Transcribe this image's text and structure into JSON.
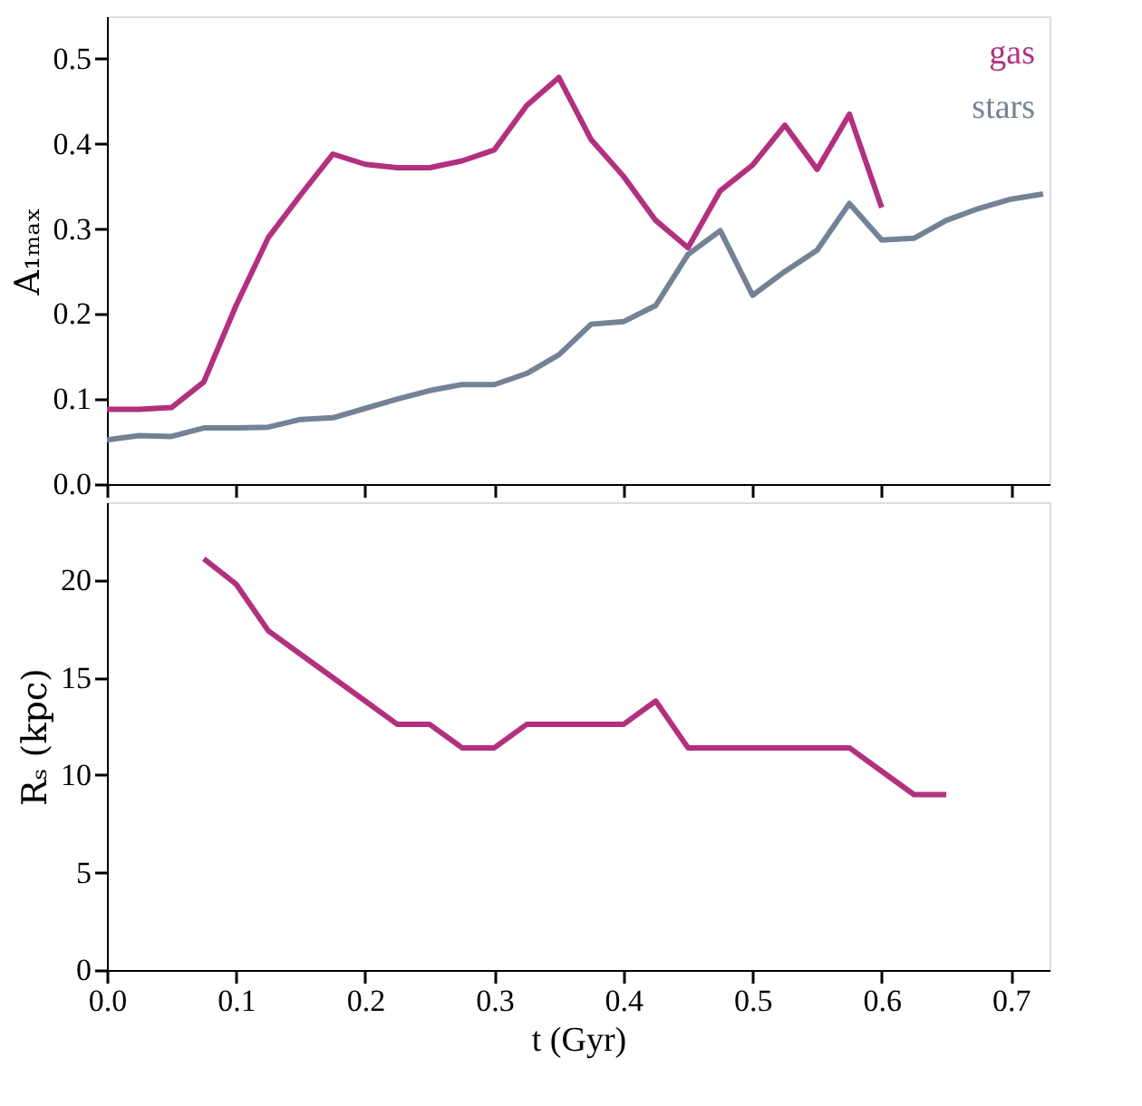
{
  "chart_data": [
    {
      "type": "line",
      "ylabel": "A₁ₘₐₓ",
      "xlim": [
        0,
        0.73
      ],
      "ylim": [
        0,
        0.55
      ],
      "xticks": [
        0,
        0.1,
        0.2,
        0.3,
        0.4,
        0.5,
        0.6,
        0.7
      ],
      "yticks": [
        {
          "value": 0,
          "label": "0.0"
        },
        0.1,
        0.2,
        0.3,
        0.4,
        0.5
      ],
      "tick_labels": "y",
      "legend": "top right",
      "grid": false,
      "line_style": "solid",
      "series": [
        {
          "name": "gas",
          "color": "#b2307f",
          "x": [
            0,
            0.025,
            0.05,
            0.075,
            0.1,
            0.125,
            0.15,
            0.175,
            0.2,
            0.225,
            0.25,
            0.275,
            0.3,
            0.325,
            0.35,
            0.375,
            0.4,
            0.425,
            0.45,
            0.475,
            0.5,
            0.525,
            0.55,
            0.575,
            0.6
          ],
          "values": [
            0.088,
            0.088,
            0.09,
            0.12,
            0.21,
            0.29,
            0.34,
            0.388,
            0.376,
            0.372,
            0.372,
            0.38,
            0.393,
            0.445,
            0.478,
            0.405,
            0.362,
            0.31,
            0.278,
            0.345,
            0.375,
            0.422,
            0.37,
            0.435,
            0.325
          ]
        },
        {
          "name": "stars",
          "color": "#748296",
          "x": [
            0,
            0.025,
            0.05,
            0.075,
            0.1,
            0.125,
            0.15,
            0.175,
            0.2,
            0.225,
            0.25,
            0.275,
            0.3,
            0.325,
            0.35,
            0.375,
            0.4,
            0.425,
            0.45,
            0.475,
            0.5,
            0.525,
            0.55,
            0.575,
            0.6,
            0.625,
            0.65,
            0.675,
            0.7,
            0.725
          ],
          "values": [
            0.052,
            0.057,
            0.056,
            0.066,
            0.066,
            0.067,
            0.076,
            0.078,
            0.089,
            0.1,
            0.11,
            0.117,
            0.117,
            0.13,
            0.152,
            0.188,
            0.191,
            0.21,
            0.27,
            0.298,
            0.222,
            0.25,
            0.275,
            0.33,
            0.287,
            0.289,
            0.31,
            0.324,
            0.335,
            0.341
          ]
        }
      ]
    },
    {
      "type": "line",
      "xlabel": "t (Gyr)",
      "ylabel": "Rₛ (kpc)",
      "xlim": [
        0,
        0.73
      ],
      "ylim": [
        0,
        24
      ],
      "xticks": [
        {
          "value": 0,
          "label": "0.0"
        },
        0.1,
        0.2,
        0.3,
        0.4,
        0.5,
        0.6,
        0.7
      ],
      "yticks": [
        0,
        5,
        10,
        15,
        20
      ],
      "grid": false,
      "line_style": "solid",
      "series": [
        {
          "color": "#b2307f",
          "x": [
            0.075,
            0.1,
            0.125,
            0.15,
            0.175,
            0.2,
            0.225,
            0.25,
            0.275,
            0.3,
            0.325,
            0.35,
            0.375,
            0.4,
            0.425,
            0.45,
            0.475,
            0.5,
            0.525,
            0.55,
            0.575,
            0.6,
            0.625,
            0.65
          ],
          "values": [
            21.1,
            19.8,
            17.4,
            16.2,
            15.0,
            13.8,
            12.6,
            12.6,
            11.4,
            11.4,
            12.6,
            12.6,
            12.6,
            12.6,
            13.8,
            11.4,
            11.4,
            11.4,
            11.4,
            11.4,
            11.4,
            10.2,
            9.0,
            9.0
          ]
        }
      ]
    }
  ]
}
